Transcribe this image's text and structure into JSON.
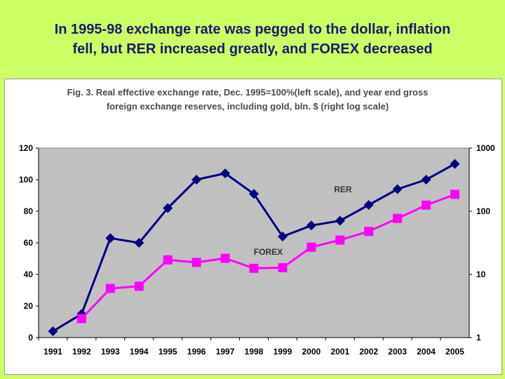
{
  "slide": {
    "title_line1": "In 1995-98 exchange rate was pegged to the dollar,  inflation",
    "title_line2": "fell, but RER increased greatly, and FOREX decreased",
    "background": "#CCFF66",
    "title_color": "#1a1a6e"
  },
  "chart_data": {
    "type": "line",
    "title_line1": "Fig. 3. Real effective exchange rate, Dec. 1995=100%(left scale), and year end gross",
    "title_line2": "foreign exchange reserves, including gold, bln. $ (right log scale)",
    "categories": [
      "1991",
      "1992",
      "1993",
      "1994",
      "1995",
      "1996",
      "1997",
      "1998",
      "1999",
      "2000",
      "2001",
      "2002",
      "2003",
      "2004",
      "2005"
    ],
    "left_axis": {
      "min": 0,
      "max": 120,
      "ticks": [
        "0",
        "20",
        "40",
        "60",
        "80",
        "100",
        "120"
      ]
    },
    "right_axis": {
      "scale": "log",
      "min": 1,
      "max": 1000,
      "ticks": [
        "1",
        "10",
        "100",
        "1000"
      ]
    },
    "grid": false,
    "plot_background": "#c0c0c0",
    "series": [
      {
        "name": "RER",
        "axis": "left",
        "color": "#000080",
        "marker": "diamond",
        "values": [
          4,
          15,
          63,
          60,
          82,
          100,
          104,
          91,
          64,
          71,
          74,
          84,
          94,
          100,
          110
        ]
      },
      {
        "name": "FOREX",
        "axis": "right",
        "color": "#FF00FF",
        "marker": "square",
        "values": [
          null,
          2,
          6,
          6.5,
          17,
          15.5,
          18,
          12.5,
          12.8,
          27,
          35,
          48,
          77,
          125,
          185
        ]
      }
    ]
  }
}
